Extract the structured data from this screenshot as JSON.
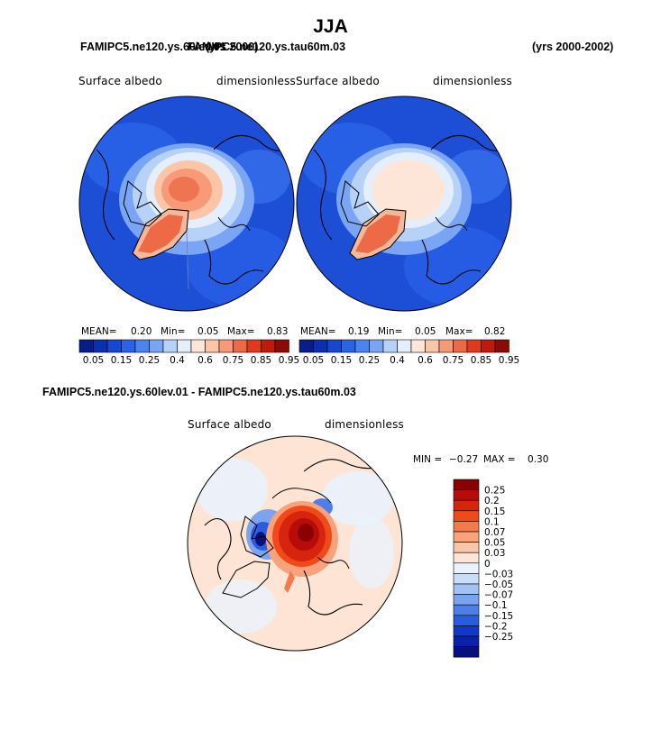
{
  "title": "JJA",
  "top": {
    "left_case": "FAMIPC5.ne120.ys.60lev.01",
    "overlap_case": "FAMIPC5.ne120.ys.tau60m.03",
    "overlap_years": "(yrs 2000)",
    "right_years": "(yrs 2000-2002)"
  },
  "panels": [
    {
      "variable": "Surface albedo",
      "units": "dimensionless",
      "mean_label": "MEAN=",
      "mean": "0.20",
      "min_label": "Min=",
      "min": "0.05",
      "max_label": "Max=",
      "max": "0.83"
    },
    {
      "variable": "Surface albedo",
      "units": "dimensionless",
      "mean_label": "MEAN=",
      "mean": "0.19",
      "min_label": "Min=",
      "min": "0.05",
      "max_label": "Max=",
      "max": "0.82"
    }
  ],
  "colorbar_h": {
    "colors": [
      "#081d8a",
      "#0b2fb0",
      "#1547d4",
      "#2a63e8",
      "#4b83f0",
      "#7aa5f5",
      "#b7d2f8",
      "#e5eefc",
      "#fde6d8",
      "#fbc5a8",
      "#f69a77",
      "#ee6a47",
      "#e03a1e",
      "#c01a0b",
      "#8e0a05"
    ],
    "ticks": [
      "0.05",
      "0.15",
      "0.25",
      "0.4",
      "0.6",
      "0.75",
      "0.85",
      "0.95"
    ]
  },
  "diff": {
    "header": "FAMIPC5.ne120.ys.60lev.01 - FAMIPC5.ne120.ys.tau60m.03",
    "variable": "Surface albedo",
    "units": "dimensionless",
    "min_label": "MIN =",
    "min": "−0.27",
    "max_label": "MAX =",
    "max": "0.30"
  },
  "colorbar_v": {
    "colors": [
      "#8b0000",
      "#b80c0a",
      "#d7240c",
      "#f04a1a",
      "#f47a4a",
      "#f8a37c",
      "#fbc6a8",
      "#fde4d4",
      "#eaf2fd",
      "#c9ddf8",
      "#a3c2f3",
      "#7ba3ee",
      "#4e7fe8",
      "#2a5ce0",
      "#1238c8",
      "#0a22a8",
      "#06117f"
    ],
    "labels": [
      "0.25",
      "0.2",
      "0.15",
      "0.1",
      "0.07",
      "0.05",
      "0.03",
      "0",
      "−0.03",
      "−0.05",
      "−0.07",
      "−0.1",
      "−0.15",
      "−0.2",
      "−0.25"
    ]
  }
}
